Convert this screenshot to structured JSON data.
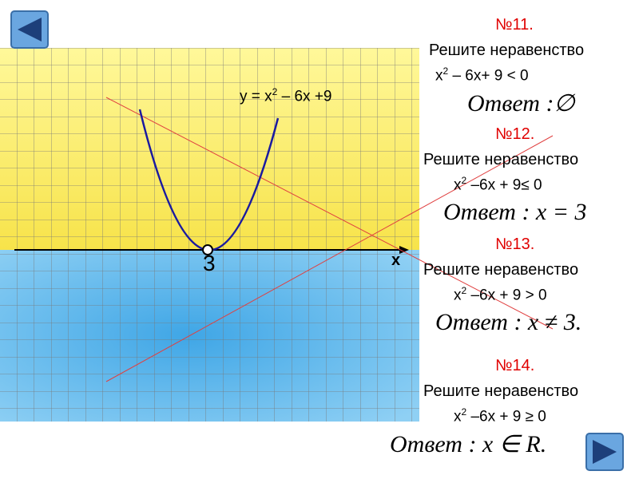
{
  "graph": {
    "label": [
      "y = x",
      "2",
      " – 6x +9"
    ],
    "vertex_label": "3",
    "axis_label": "x"
  },
  "tasks": [
    {
      "number": "№11.",
      "prompt": "Решите неравенство",
      "inequality": [
        "x",
        "2",
        " – 6x+ 9 < 0"
      ],
      "answer": [
        "Ответ",
        " :∅"
      ]
    },
    {
      "number": "№12.",
      "prompt": "Решите неравенство",
      "inequality": [
        "x",
        "2",
        " –6x + 9≤ 0"
      ],
      "answer": [
        "Ответ",
        " : x = 3"
      ]
    },
    {
      "number": "№13.",
      "prompt": "Решите неравенство",
      "inequality": [
        "x",
        "2",
        " –6x + 9 > 0"
      ],
      "answer": [
        "Ответ",
        " : x ≠ 3."
      ]
    },
    {
      "number": "№14.",
      "prompt": "Решите неравенство",
      "inequality": [
        "x",
        "2",
        " –6x + 9 ≥ 0"
      ],
      "answer": [
        "Ответ",
        " : x ∈ R."
      ]
    }
  ]
}
